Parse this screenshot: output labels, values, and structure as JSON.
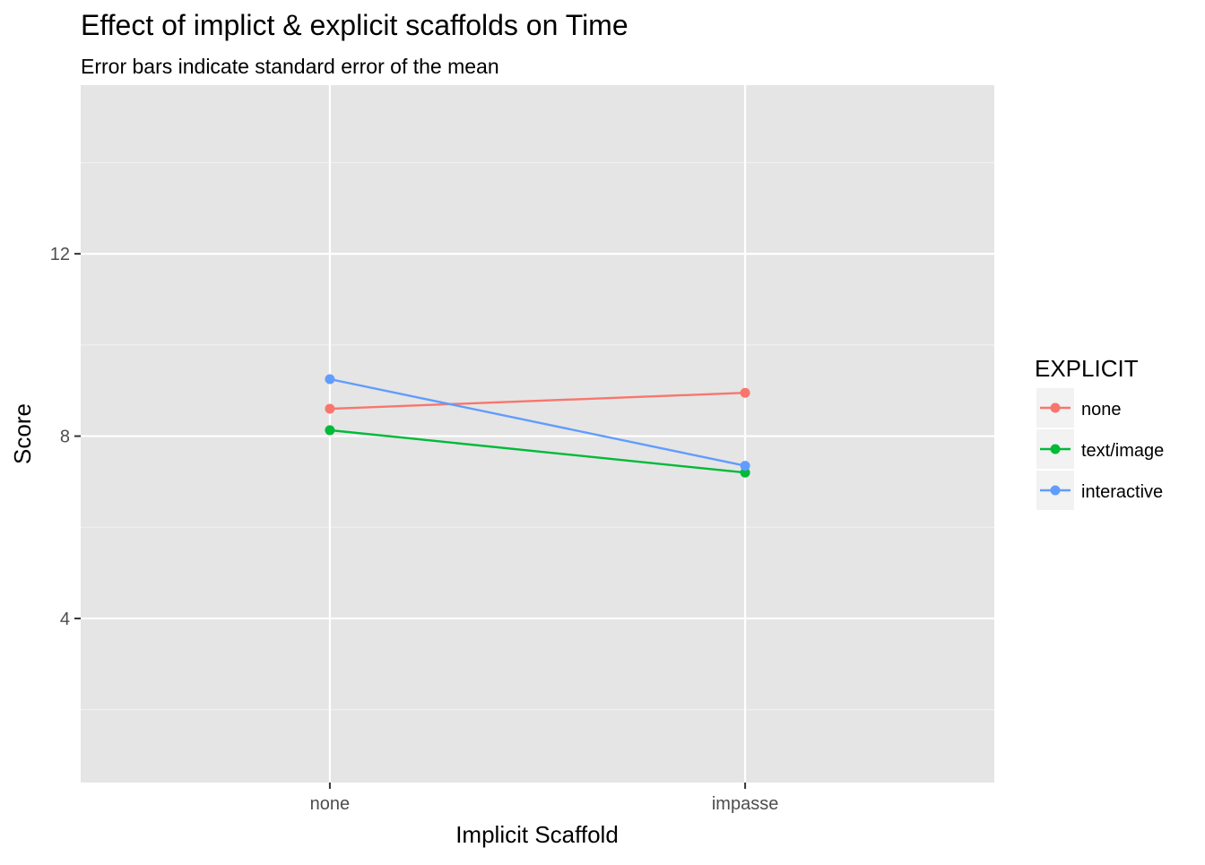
{
  "chart_data": {
    "type": "line",
    "title": "Effect of implict & explicit scaffolds on Time",
    "subtitle": "Error bars indicate standard error of the mean",
    "xlabel": "Implicit Scaffold",
    "ylabel": "Score",
    "categories": [
      "none",
      "impasse"
    ],
    "ylim": [
      0.4,
      15.7
    ],
    "yticks": [
      4,
      8,
      12
    ],
    "grid": true,
    "legend": {
      "title": "EXPLICIT",
      "position": "right"
    },
    "series": [
      {
        "name": "none",
        "color": "#F8766D",
        "values": [
          8.6,
          8.95
        ]
      },
      {
        "name": "text/image",
        "color": "#00BA38",
        "values": [
          8.13,
          7.2
        ]
      },
      {
        "name": "interactive",
        "color": "#619CFF",
        "values": [
          9.25,
          7.35
        ]
      }
    ]
  }
}
